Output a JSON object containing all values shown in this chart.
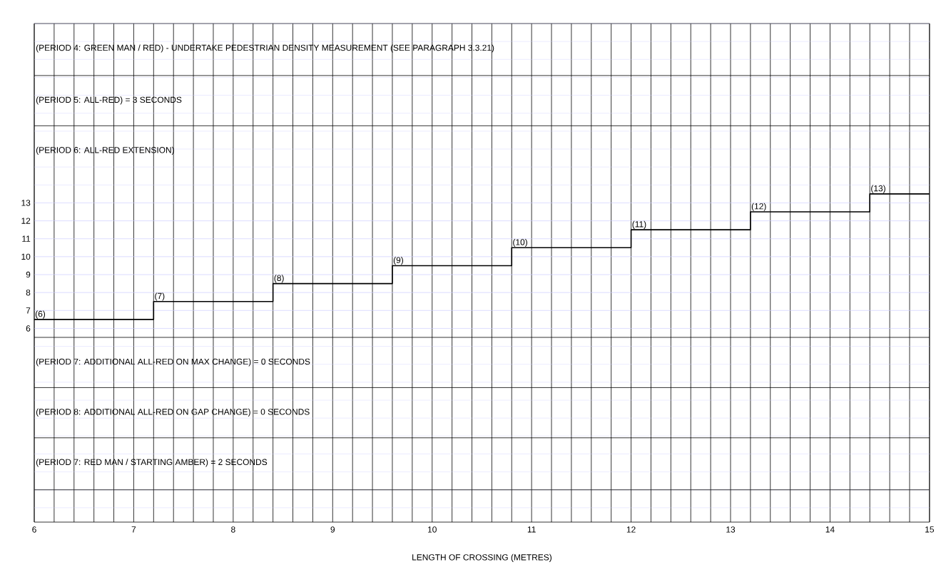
{
  "chart_data": {
    "type": "step",
    "xlabel": "LENGTH OF CROSSING (METRES)",
    "x": [
      6,
      7.2,
      8.4,
      9.6,
      10.8,
      12,
      13.2,
      14.4,
      15
    ],
    "series": [
      {
        "color": "#000000",
        "values": [
          6.5,
          7.5,
          8.5,
          9.5,
          10.5,
          11.5,
          12.5,
          13.5,
          13.5
        ]
      }
    ],
    "xlim": [
      6,
      15
    ],
    "ylim": [
      -4.8,
      23
    ],
    "xticks": [
      6,
      7,
      8,
      9,
      10,
      11,
      12,
      13,
      14,
      15
    ],
    "yticks": [
      6,
      7,
      8,
      9,
      10,
      11,
      12,
      13
    ],
    "grid": true,
    "ref_lines": [
      {
        "axis": "y",
        "value": 20.1,
        "color": "#000000"
      },
      {
        "axis": "y",
        "value": 17.3,
        "color": "#000000"
      },
      {
        "axis": "y",
        "value": 5.5,
        "color": "#000000"
      },
      {
        "axis": "y",
        "value": 2.7,
        "color": "#000000"
      },
      {
        "axis": "y",
        "value": -0.1,
        "color": "#000000"
      },
      {
        "axis": "y",
        "value": -3,
        "color": "#000000"
      }
    ],
    "annotations": [
      "(PERIOD 4: GREEN MAN / RED) - UNDERTAKE PEDESTRIAN DENSITY MEASUREMENT (SEE PARAGRAPH 3.3.21)",
      "(PERIOD 5: ALL-RED) = 3 SECONDS",
      "(PERIOD 6: ALL-RED EXTENSION)",
      "(PERIOD 7: ADDITIONAL ALL-RED ON MAX CHANGE) = 0 SECONDS",
      "(PERIOD 8: ADDITIONAL ALL-RED ON GAP CHANGE) = 0 SECONDS",
      "(PERIOD 7: RED MAN / STARTING AMBER) = 2 SECONDS",
      {
        "text": "(6)",
        "x": 6,
        "y": 6.5
      },
      {
        "text": "(7)",
        "x": 7.2,
        "y": 7.5
      },
      {
        "text": "(8)",
        "x": 8.4,
        "y": 8.5
      },
      {
        "text": "(9)",
        "x": 9.6,
        "y": 9.5
      },
      {
        "text": "(10)",
        "x": 10.8,
        "y": 10.5
      },
      {
        "text": "(11)",
        "x": 12,
        "y": 11.5
      },
      {
        "text": "(12)",
        "x": 13.2,
        "y": 12.5
      },
      {
        "text": "(13)",
        "x": 14.4,
        "y": 13.5
      }
    ]
  }
}
